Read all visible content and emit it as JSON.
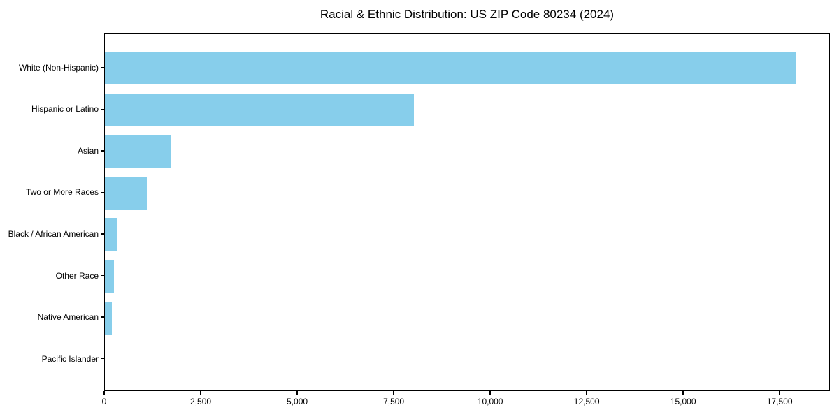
{
  "figure": {
    "background": "#FFFFFF"
  },
  "chart_data": {
    "type": "bar",
    "orientation": "horizontal",
    "title": "Racial & Ethnic Distribution: US ZIP Code 80234 (2024)",
    "categories": [
      "White (Non-Hispanic)",
      "Hispanic or Latino",
      "Asian",
      "Two or More Races",
      "Black / African American",
      "Other Race",
      "Native American",
      "Pacific Islander"
    ],
    "values": [
      17900,
      8000,
      1700,
      1080,
      305,
      230,
      185,
      0
    ],
    "xlabel": "",
    "ylabel": "",
    "xlim": [
      0,
      18800
    ],
    "x_ticks": [
      0,
      2500,
      5000,
      7500,
      10000,
      12500,
      15000,
      17500
    ],
    "x_tick_labels": [
      "0",
      "2,500",
      "5,000",
      "7,500",
      "10,000",
      "12,500",
      "15,000",
      "17,500"
    ],
    "grid": false,
    "legend": false,
    "bar_color": "#87CEEB",
    "axis_color": "#000000",
    "text_color": "#000000"
  }
}
